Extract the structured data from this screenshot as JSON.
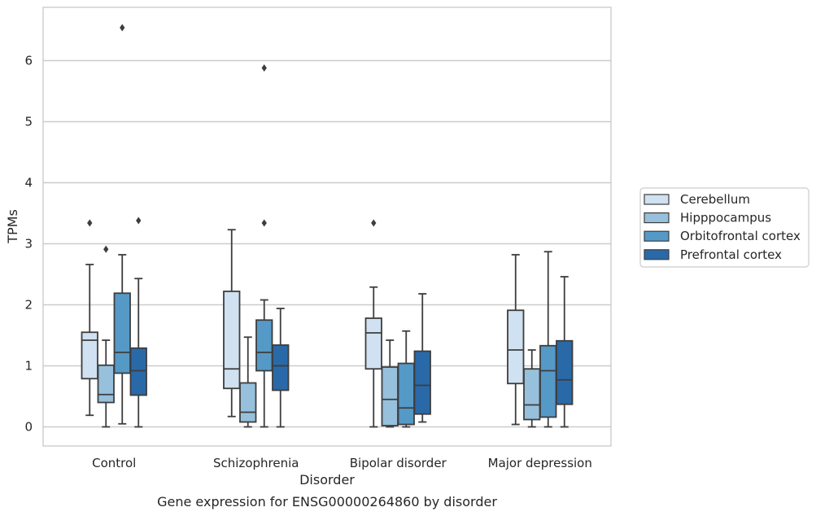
{
  "chart_data": {
    "type": "box",
    "title": "",
    "caption": "Gene expression for ENSG00000264860 by disorder",
    "xlabel": "Disorder",
    "ylabel": "TPMs",
    "ylim": [
      -0.32,
      6.92
    ],
    "yticks": [
      0,
      1,
      2,
      3,
      4,
      5,
      6
    ],
    "grid": "horizontal",
    "legend_position": "right",
    "categories": [
      "Control",
      "Schizophrenia",
      "Bipolar disorder",
      "Major depression"
    ],
    "series": [
      {
        "name": "Cerebellum",
        "color": "#d0e1f1",
        "boxes": [
          {
            "whislo": 0.19,
            "q1": 0.79,
            "med": 1.42,
            "q3": 1.55,
            "whishi": 2.66,
            "fliers": [
              3.34
            ]
          },
          {
            "whislo": 0.17,
            "q1": 0.63,
            "med": 0.95,
            "q3": 2.22,
            "whishi": 3.23,
            "fliers": []
          },
          {
            "whislo": 0.0,
            "q1": 0.95,
            "med": 1.54,
            "q3": 1.78,
            "whishi": 2.29,
            "fliers": [
              3.34
            ]
          },
          {
            "whislo": 0.04,
            "q1": 0.71,
            "med": 1.26,
            "q3": 1.91,
            "whishi": 2.82,
            "fliers": []
          }
        ]
      },
      {
        "name": "Hipppocampus",
        "color": "#97c0dc",
        "boxes": [
          {
            "whislo": 0.0,
            "q1": 0.4,
            "med": 0.53,
            "q3": 1.01,
            "whishi": 1.42,
            "fliers": [
              2.91
            ]
          },
          {
            "whislo": 0.0,
            "q1": 0.08,
            "med": 0.24,
            "q3": 0.72,
            "whishi": 1.47,
            "fliers": []
          },
          {
            "whislo": 0.0,
            "q1": 0.02,
            "med": 0.45,
            "q3": 0.98,
            "whishi": 1.42,
            "fliers": []
          },
          {
            "whislo": 0.0,
            "q1": 0.12,
            "med": 0.36,
            "q3": 0.95,
            "whishi": 1.26,
            "fliers": []
          }
        ]
      },
      {
        "name": "Orbitofrontal cortex",
        "color": "#5599c7",
        "boxes": [
          {
            "whislo": 0.05,
            "q1": 0.88,
            "med": 1.22,
            "q3": 2.19,
            "whishi": 2.82,
            "fliers": [
              6.54
            ]
          },
          {
            "whislo": 0.0,
            "q1": 0.92,
            "med": 1.22,
            "q3": 1.75,
            "whishi": 2.08,
            "fliers": [
              3.34,
              5.88
            ]
          },
          {
            "whislo": 0.0,
            "q1": 0.04,
            "med": 0.31,
            "q3": 1.04,
            "whishi": 1.57,
            "fliers": []
          },
          {
            "whislo": 0.0,
            "q1": 0.16,
            "med": 0.92,
            "q3": 1.33,
            "whishi": 2.87,
            "fliers": []
          }
        ]
      },
      {
        "name": "Prefrontal cortex",
        "color": "#2a69a8",
        "boxes": [
          {
            "whislo": 0.0,
            "q1": 0.52,
            "med": 0.92,
            "q3": 1.29,
            "whishi": 2.43,
            "fliers": [
              3.38
            ]
          },
          {
            "whislo": 0.0,
            "q1": 0.6,
            "med": 1.0,
            "q3": 1.34,
            "whishi": 1.94,
            "fliers": []
          },
          {
            "whislo": 0.08,
            "q1": 0.21,
            "med": 0.68,
            "q3": 1.24,
            "whishi": 2.18,
            "fliers": []
          },
          {
            "whislo": 0.0,
            "q1": 0.37,
            "med": 0.77,
            "q3": 1.41,
            "whishi": 2.46,
            "fliers": []
          }
        ]
      }
    ]
  },
  "colors": {
    "background": "#ffffff",
    "grid": "#cccccc",
    "spine": "#cccccc",
    "line": "#3d3d3d",
    "text": "#262626"
  }
}
